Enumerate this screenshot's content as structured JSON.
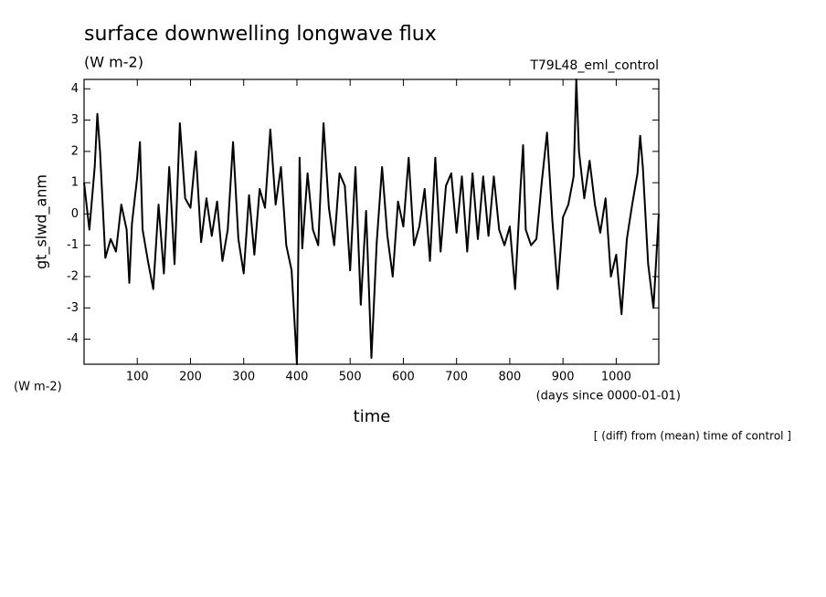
{
  "chart_data": {
    "type": "line",
    "title": "surface downwelling longwave flux",
    "subtitle": "(W m-2)",
    "experiment": "T79L48_eml_control",
    "y_label": "gt_slwd_anm",
    "y_units": "(W m-2)",
    "x_label": "time",
    "x_units": "(days since 0000-01-01)",
    "note": "[ (diff) from (mean) time of control ]",
    "xlim": [
      0,
      1080
    ],
    "ylim": [
      -4.8,
      4.3
    ],
    "xticks": [
      100,
      200,
      300,
      400,
      500,
      600,
      700,
      800,
      900,
      1000
    ],
    "yticks": [
      -4,
      -3,
      -2,
      -1,
      0,
      1,
      2,
      3,
      4
    ],
    "series": [
      {
        "name": "gt_slwd_anm",
        "color": "#000000",
        "x": [
          0,
          10,
          20,
          25,
          30,
          40,
          50,
          60,
          70,
          80,
          85,
          90,
          100,
          105,
          110,
          120,
          130,
          140,
          150,
          160,
          165,
          170,
          180,
          190,
          200,
          210,
          220,
          230,
          240,
          250,
          260,
          270,
          280,
          290,
          300,
          310,
          320,
          330,
          340,
          350,
          360,
          370,
          380,
          390,
          400,
          405,
          410,
          420,
          430,
          440,
          450,
          460,
          470,
          480,
          490,
          500,
          510,
          520,
          530,
          540,
          550,
          560,
          570,
          580,
          590,
          600,
          610,
          620,
          630,
          640,
          650,
          660,
          670,
          680,
          690,
          700,
          710,
          720,
          730,
          740,
          750,
          760,
          770,
          780,
          790,
          800,
          810,
          820,
          825,
          830,
          840,
          850,
          860,
          870,
          880,
          890,
          900,
          910,
          920,
          925,
          930,
          940,
          950,
          960,
          970,
          980,
          990,
          1000,
          1010,
          1020,
          1030,
          1040,
          1045,
          1050,
          1060,
          1070,
          1080
        ],
        "values": [
          1.0,
          -0.5,
          1.5,
          3.2,
          2.0,
          -1.4,
          -0.8,
          -1.2,
          0.3,
          -0.5,
          -2.2,
          -0.3,
          1.2,
          2.3,
          -0.5,
          -1.5,
          -2.4,
          0.3,
          -1.9,
          1.5,
          0.0,
          -1.6,
          2.9,
          0.5,
          0.2,
          2.0,
          -0.9,
          0.5,
          -0.7,
          0.4,
          -1.5,
          -0.5,
          2.3,
          -0.8,
          -1.9,
          0.6,
          -1.3,
          0.8,
          0.2,
          2.7,
          0.3,
          1.5,
          -1.0,
          -1.8,
          -4.8,
          1.8,
          -1.1,
          1.3,
          -0.5,
          -1.0,
          2.9,
          0.2,
          -1.0,
          1.3,
          0.9,
          -1.8,
          1.5,
          -2.9,
          0.1,
          -4.6,
          -0.9,
          1.5,
          -0.7,
          -2.0,
          0.4,
          -0.4,
          1.8,
          -1.0,
          -0.4,
          0.8,
          -1.5,
          1.8,
          -1.2,
          0.9,
          1.3,
          -0.6,
          1.2,
          -1.2,
          1.3,
          -0.8,
          1.2,
          -0.7,
          1.2,
          -0.5,
          -1.0,
          -0.4,
          -2.4,
          0.8,
          2.2,
          -0.5,
          -1.0,
          -0.8,
          1.0,
          2.6,
          -0.2,
          -2.4,
          -0.1,
          0.3,
          1.2,
          4.3,
          2.0,
          0.5,
          1.7,
          0.3,
          -0.6,
          0.5,
          -2.0,
          -1.3,
          -3.2,
          -0.8,
          0.3,
          1.3,
          2.5,
          1.5,
          -1.6,
          -3.0,
          0.0
        ]
      }
    ]
  }
}
